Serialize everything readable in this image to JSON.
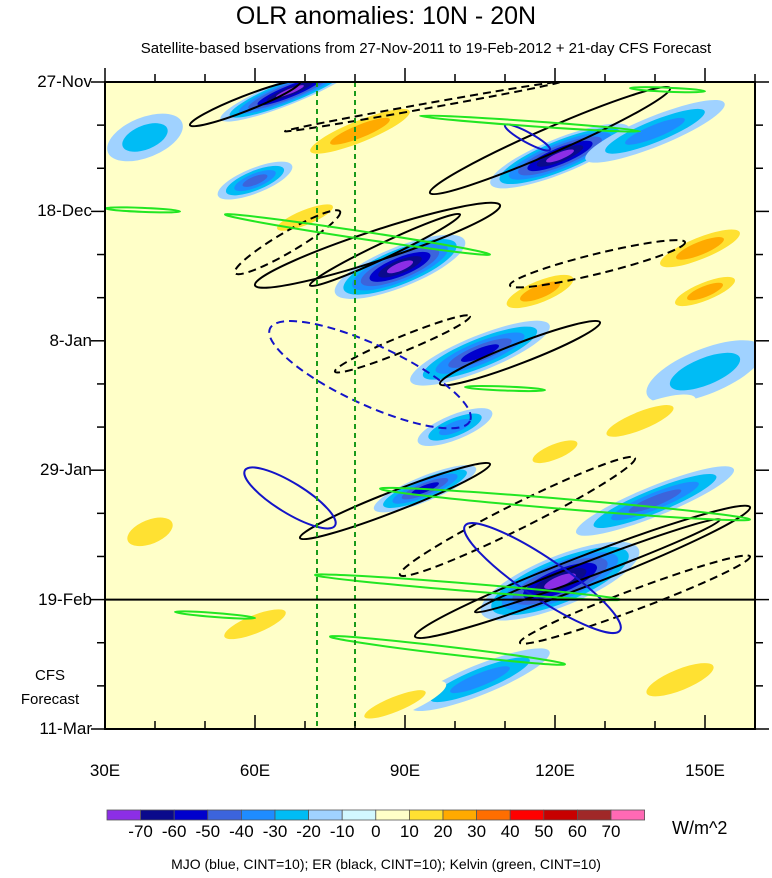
{
  "chart_data": {
    "type": "heatmap",
    "title": "OLR anomalies: 10N - 20N",
    "subtitle": "Satellite-based bservations from 27-Nov-2011 to 19-Feb-2012 + 21-day CFS Forecast",
    "x_ticks": [
      {
        "lon": 30,
        "label": "30E"
      },
      {
        "lon": 60,
        "label": "60E"
      },
      {
        "lon": 90,
        "label": "90E"
      },
      {
        "lon": 120,
        "label": "120E"
      },
      {
        "lon": 150,
        "label": "150E"
      }
    ],
    "xlim": [
      30,
      160
    ],
    "y_ticks": [
      {
        "day": 0,
        "label": "27-Nov"
      },
      {
        "day": 21,
        "label": "18-Dec"
      },
      {
        "day": 42,
        "label": "8-Jan"
      },
      {
        "day": 63,
        "label": "29-Jan"
      },
      {
        "day": 84,
        "label": "19-Feb"
      },
      {
        "day": 105,
        "label": "11-Mar"
      }
    ],
    "ylim_days": [
      0,
      105
    ],
    "forecast_start_day": 84,
    "forecast_label": [
      "CFS",
      "Forecast"
    ],
    "reference_lons": [
      72.4,
      80
    ],
    "colorbar": {
      "levels": [
        "-70",
        "-60",
        "-50",
        "-40",
        "-30",
        "-20",
        "-10",
        "0",
        "10",
        "20",
        "30",
        "40",
        "50",
        "60",
        "70"
      ],
      "colors": [
        "#8c2ee6",
        "#0a0a8c",
        "#0000cd",
        "#3c64dc",
        "#1e8cff",
        "#00bcf5",
        "#a0d2ff",
        "#d2f8ff",
        "#ffffc8",
        "#ffe132",
        "#ffaa00",
        "#ff6e00",
        "#ff0000",
        "#c80000",
        "#a02828",
        "#ff69b4"
      ],
      "units": "W/m^2"
    },
    "legend": "MJO (blue, CINT=10); ER (black, CINT=10); Kelvin (green, CINT=10)",
    "anomaly_blobs": [
      {
        "lon": 67,
        "day": 1.5,
        "len": 30,
        "wid": 5,
        "value": -70
      },
      {
        "lon": 121,
        "day": 12,
        "len": 30,
        "wid": 7,
        "value": -70
      },
      {
        "lon": 89,
        "day": 30,
        "len": 28,
        "wid": 8,
        "value": -70
      },
      {
        "lon": 105,
        "day": 44,
        "len": 30,
        "wid": 7,
        "value": -50
      },
      {
        "lon": 121,
        "day": 81,
        "len": 34,
        "wid": 10,
        "value": -70
      },
      {
        "lon": 94,
        "day": 66,
        "len": 22,
        "wid": 5,
        "value": -50
      },
      {
        "lon": 140,
        "day": 68,
        "len": 34,
        "wid": 6,
        "value": -40
      },
      {
        "lon": 60,
        "day": 16,
        "len": 16,
        "wid": 5,
        "value": -40
      },
      {
        "lon": 38,
        "day": 9,
        "len": 16,
        "wid": 8,
        "value": -20
      },
      {
        "lon": 140,
        "day": 8,
        "len": 30,
        "wid": 6,
        "value": -30
      },
      {
        "lon": 150,
        "day": 47,
        "len": 25,
        "wid": 9,
        "value": -20
      },
      {
        "lon": 100,
        "day": 56,
        "len": 16,
        "wid": 5,
        "value": -30
      },
      {
        "lon": 105,
        "day": 97,
        "len": 30,
        "wid": 6,
        "value": -30
      },
      {
        "lon": 81,
        "day": 8,
        "len": 30,
        "wid": 6,
        "value": 30
      },
      {
        "lon": 117,
        "day": 34,
        "len": 20,
        "wid": 6,
        "value": 30
      },
      {
        "lon": 149,
        "day": 27,
        "len": 24,
        "wid": 6,
        "value": 30
      },
      {
        "lon": 137,
        "day": 55,
        "len": 24,
        "wid": 6,
        "value": 20
      },
      {
        "lon": 39,
        "day": 73,
        "len": 16,
        "wid": 8,
        "value": 20
      },
      {
        "lon": 145,
        "day": 97,
        "len": 24,
        "wid": 7,
        "value": 20
      },
      {
        "lon": 70,
        "day": 22,
        "len": 20,
        "wid": 5,
        "value": 20
      },
      {
        "lon": 150,
        "day": 34,
        "len": 18,
        "wid": 5,
        "value": 30
      },
      {
        "lon": 120,
        "day": 60,
        "len": 16,
        "wid": 5,
        "value": 20
      },
      {
        "lon": 88,
        "day": 101,
        "len": 22,
        "wid": 5,
        "value": 20
      },
      {
        "lon": 60,
        "day": 88,
        "len": 22,
        "wid": 6,
        "value": 20
      },
      {
        "lon": 45,
        "day": 50,
        "len": 14,
        "wid": 6,
        "value": 10
      }
    ],
    "contours": [
      {
        "wave": "ER",
        "sign": "positive",
        "from": [
          60,
          33
        ],
        "to": [
          109,
          20
        ],
        "wid": 6
      },
      {
        "wave": "ER",
        "sign": "positive",
        "from": [
          71,
          33
        ],
        "to": [
          101,
          21.5
        ],
        "wid": 3
      },
      {
        "wave": "ER",
        "sign": "positive",
        "from": [
          97,
          49
        ],
        "to": [
          129,
          39
        ],
        "wid": 4
      },
      {
        "wave": "ER",
        "sign": "positive",
        "from": [
          69,
          74
        ],
        "to": [
          107,
          62
        ],
        "wid": 4
      },
      {
        "wave": "ER",
        "sign": "positive",
        "from": [
          92,
          90
        ],
        "to": [
          159,
          69
        ],
        "wid": 6
      },
      {
        "wave": "ER",
        "sign": "positive",
        "from": [
          104,
          86
        ],
        "to": [
          153,
          71
        ],
        "wid": 3
      },
      {
        "wave": "ER",
        "sign": "positive",
        "from": [
          95,
          18
        ],
        "to": [
          143,
          1
        ],
        "wid": 5
      },
      {
        "wave": "ER",
        "sign": "positive",
        "from": [
          47,
          7
        ],
        "to": [
          69,
          0
        ],
        "wid": 3
      },
      {
        "wave": "ER",
        "sign": "negative",
        "from": [
          56,
          31
        ],
        "to": [
          77,
          21
        ],
        "wid": 4
      },
      {
        "wave": "ER",
        "sign": "negative",
        "from": [
          111,
          33
        ],
        "to": [
          146,
          26
        ],
        "wid": 4
      },
      {
        "wave": "ER",
        "sign": "negative",
        "from": [
          76,
          47
        ],
        "to": [
          103,
          38
        ],
        "wid": 3
      },
      {
        "wave": "ER",
        "sign": "negative",
        "from": [
          89,
          80
        ],
        "to": [
          136,
          61
        ],
        "wid": 5
      },
      {
        "wave": "ER",
        "sign": "negative",
        "from": [
          113,
          91
        ],
        "to": [
          159,
          77
        ],
        "wid": 4
      },
      {
        "wave": "ER",
        "sign": "negative",
        "from": [
          66,
          8
        ],
        "to": [
          121,
          0
        ],
        "wid": 1
      },
      {
        "wave": "MJO",
        "sign": "negative",
        "from": [
          63,
          40
        ],
        "to": [
          103,
          55
        ],
        "wid": 12
      },
      {
        "wave": "MJO",
        "sign": "positive",
        "from": [
          58,
          63
        ],
        "to": [
          76,
          72
        ],
        "wid": 6
      },
      {
        "wave": "MJO",
        "sign": "positive",
        "from": [
          102,
          72
        ],
        "to": [
          133,
          89
        ],
        "wid": 8
      },
      {
        "wave": "MJO",
        "sign": "positive",
        "from": [
          110,
          7
        ],
        "to": [
          119,
          11
        ],
        "wid": 2
      },
      {
        "wave": "Kelvin",
        "sign": "positive",
        "from": [
          54,
          21.5
        ],
        "to": [
          107,
          28
        ],
        "wid": 1.5
      },
      {
        "wave": "Kelvin",
        "sign": "positive",
        "from": [
          75,
          90
        ],
        "to": [
          122,
          94.5
        ],
        "wid": 1.5
      },
      {
        "wave": "Kelvin",
        "sign": "positive",
        "from": [
          72,
          80
        ],
        "to": [
          133,
          84
        ],
        "wid": 1.5
      },
      {
        "wave": "Kelvin",
        "sign": "positive",
        "from": [
          85,
          66
        ],
        "to": [
          159,
          71
        ],
        "wid": 2
      },
      {
        "wave": "Kelvin",
        "sign": "positive",
        "from": [
          93,
          5.5
        ],
        "to": [
          137,
          8
        ],
        "wid": 1
      },
      {
        "wave": "Kelvin",
        "sign": "positive",
        "from": [
          102,
          49.5
        ],
        "to": [
          118,
          50
        ],
        "wid": 0.8
      },
      {
        "wave": "Kelvin",
        "sign": "positive",
        "from": [
          30,
          20.5
        ],
        "to": [
          45,
          21
        ],
        "wid": 0.6
      },
      {
        "wave": "Kelvin",
        "sign": "positive",
        "from": [
          44,
          86
        ],
        "to": [
          60,
          87
        ],
        "wid": 0.8
      },
      {
        "wave": "Kelvin",
        "sign": "positive",
        "from": [
          135,
          1
        ],
        "to": [
          150,
          1.5
        ],
        "wid": 0.6
      }
    ]
  }
}
